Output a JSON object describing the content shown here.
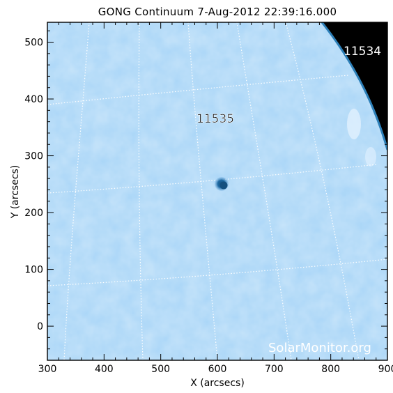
{
  "title": "GONG Continuum  7-Aug-2012 22:39:16.000",
  "x_axis": {
    "label": "X (arcsecs)",
    "range": [
      300,
      900
    ],
    "ticks": [
      "300",
      "400",
      "500",
      "600",
      "700",
      "800",
      "900"
    ],
    "tick_values": [
      300,
      400,
      500,
      600,
      700,
      800,
      900
    ]
  },
  "y_axis": {
    "label": "Y (arcsecs)",
    "range": [
      -60,
      535
    ],
    "ticks": [
      "0",
      "100",
      "200",
      "300",
      "400",
      "500"
    ],
    "tick_values": [
      0,
      100,
      200,
      300,
      400,
      500
    ]
  },
  "regions": [
    {
      "label": "11534",
      "x": 866,
      "y": 480,
      "color": "#ffffff"
    },
    {
      "label": "11535",
      "x": 590,
      "y": 360,
      "color": "#000000"
    }
  ],
  "sunspot": {
    "x": 610,
    "y": 245
  },
  "watermark": "SolarMonitor.org",
  "colors": {
    "disk": "#a8d5f7",
    "space": "#000000",
    "spot_core": "#1a5f94",
    "spot_penumbra": "#3f89c4",
    "grid": "#ffffff"
  }
}
